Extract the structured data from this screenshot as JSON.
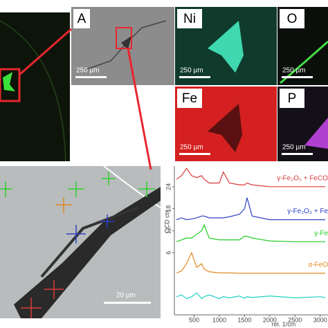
{
  "panels": [
    {
      "label": "A",
      "scale": "250 µm"
    },
    {
      "label": "Ni",
      "scale": "250 µm"
    },
    {
      "label": "O",
      "scale": "250 µm"
    },
    {
      "label": "Fe",
      "scale": "250 µm"
    },
    {
      "label": "P",
      "scale": "250 µm"
    }
  ],
  "detail_scale": "20 µm",
  "chart_data": {
    "type": "line",
    "ylabel": "CCD cts",
    "xlabel": "rel. 1/cm",
    "x": [
      150,
      250,
      350,
      450,
      550,
      650,
      700,
      800,
      1000,
      1080,
      1200,
      1400,
      1500,
      1550,
      1650,
      2000,
      2500,
      3000,
      3100
    ],
    "xlim": [
      150,
      3100
    ],
    "xticks": [
      500,
      1000,
      1500,
      2000,
      2500,
      3000
    ],
    "ylim": [
      -10,
      30
    ],
    "yticks": [
      6,
      12,
      18,
      24
    ],
    "series": [
      {
        "name": "γ-Fe₂O₃ + FeCO",
        "color": "#d93a3a",
        "values": [
          26,
          27,
          29,
          27,
          26.5,
          27,
          26,
          25,
          25,
          28,
          25,
          24.5,
          24.5,
          25,
          24.5,
          24,
          24,
          24,
          24
        ]
      },
      {
        "name": "γ-Fe₂O₃ + Fe",
        "color": "#2c40c4",
        "values": [
          15,
          15.5,
          15,
          15.2,
          15.5,
          16,
          16,
          15.5,
          15.5,
          15.5,
          15.8,
          16.5,
          18,
          21,
          16,
          15,
          15,
          15,
          15
        ]
      },
      {
        "name": "γ-Fe",
        "color": "#22cc22",
        "values": [
          9,
          9.5,
          10,
          10,
          11,
          12,
          13.6,
          10,
          9.5,
          9.5,
          9.5,
          9.5,
          10.5,
          10.5,
          10,
          9.2,
          9,
          9,
          9
        ]
      },
      {
        "name": "α-FeO",
        "color": "#e08a20",
        "values": [
          0.5,
          1,
          3,
          6,
          2,
          3,
          1.5,
          0.8,
          0.5,
          0.5,
          0.5,
          0.4,
          0.4,
          0.4,
          0.4,
          0.4,
          0.4,
          0.4,
          0.4
        ]
      },
      {
        "name": null,
        "color": "#20d0c0",
        "values": [
          -6,
          -5.5,
          -6.5,
          -6,
          -5,
          -6.5,
          -6,
          -5.5,
          -6.5,
          -6,
          -6.3,
          -5.8,
          -6.4,
          -6,
          -6.2,
          -5.8,
          -6.3,
          -6,
          -6.2
        ]
      }
    ]
  }
}
